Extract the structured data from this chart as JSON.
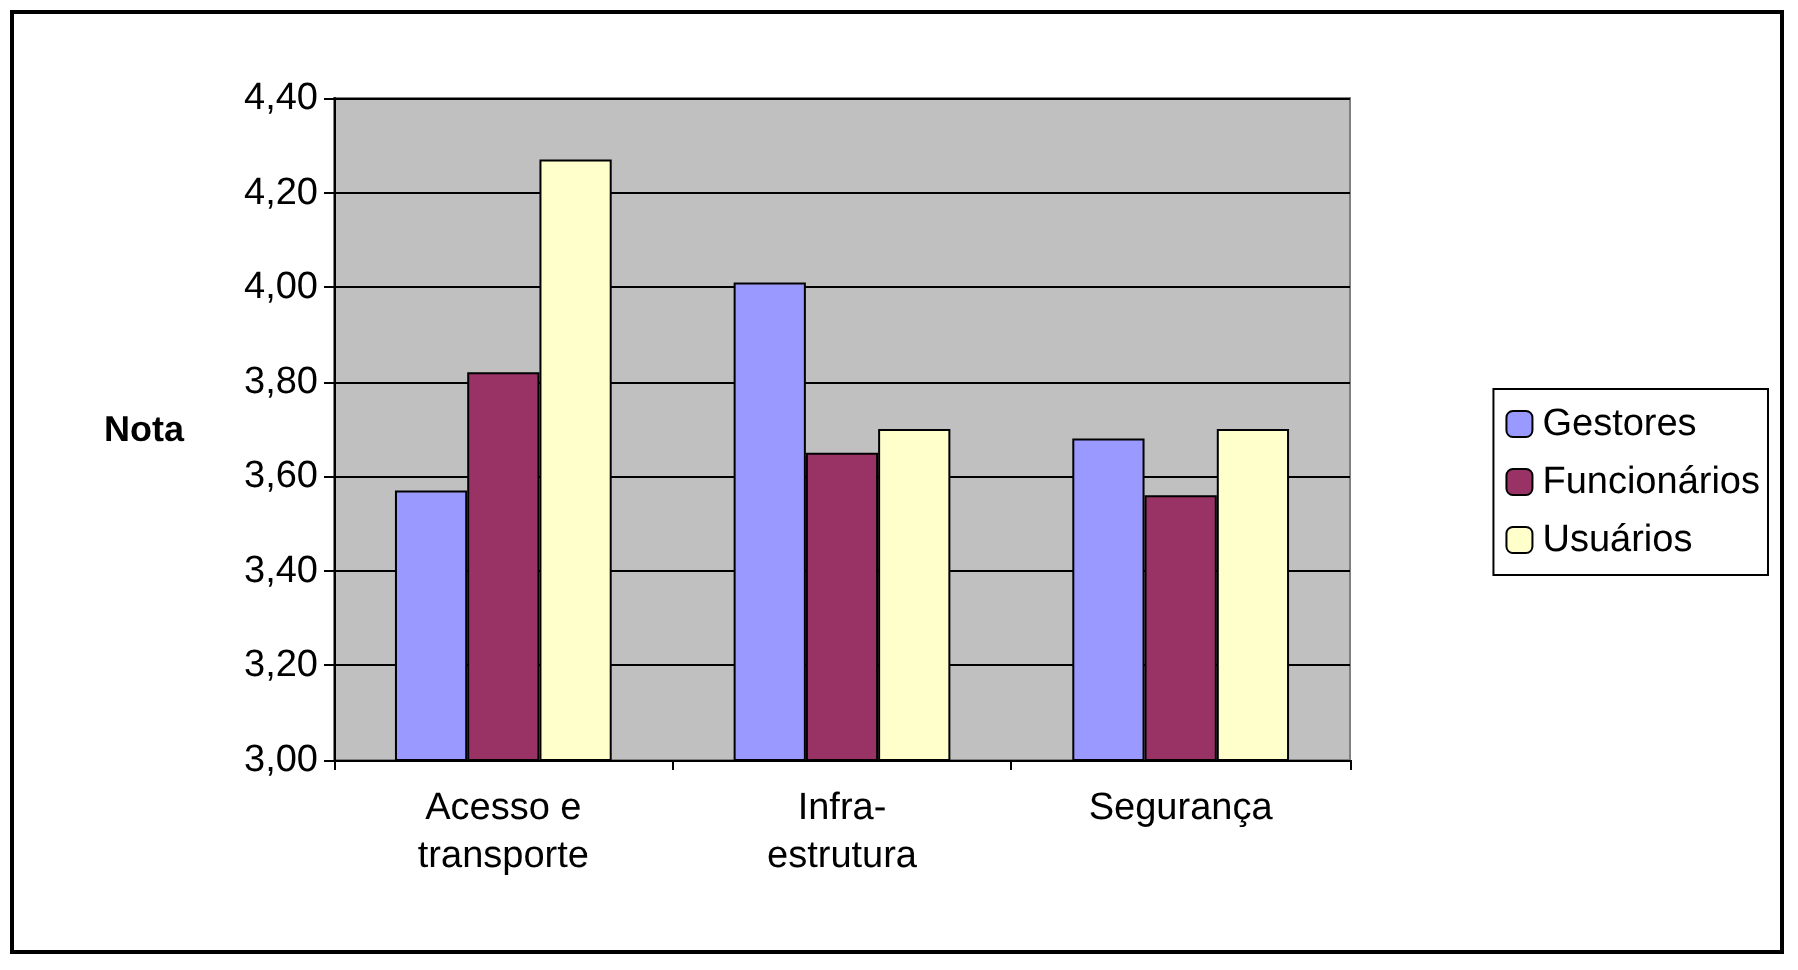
{
  "chart_data": {
    "type": "bar",
    "ylabel": "Nota",
    "categories": [
      "Acesso e\ntransporte",
      "Infra-\nestrutura",
      "Segurança"
    ],
    "series": [
      {
        "name": "Gestores",
        "color": "#9999ff",
        "values": [
          3.57,
          4.01,
          3.68
        ]
      },
      {
        "name": "Funcionários",
        "color": "#993366",
        "values": [
          3.82,
          3.65,
          3.56
        ]
      },
      {
        "name": "Usuários",
        "color": "#ffffcc",
        "values": [
          4.27,
          3.7,
          3.7
        ]
      }
    ],
    "ylim": [
      3,
      4.4
    ],
    "yticks": [
      {
        "value": 3,
        "label": "3,00"
      },
      {
        "value": 3.2,
        "label": "3,20"
      },
      {
        "value": 3.4,
        "label": "3,40"
      },
      {
        "value": 3.6,
        "label": "3,60"
      },
      {
        "value": 3.8,
        "label": "3,80"
      },
      {
        "value": 4,
        "label": "4,00"
      },
      {
        "value": 4.2,
        "label": "4,20"
      },
      {
        "value": 4.4,
        "label": "4,40"
      }
    ],
    "grid": "y",
    "legend": "right"
  }
}
